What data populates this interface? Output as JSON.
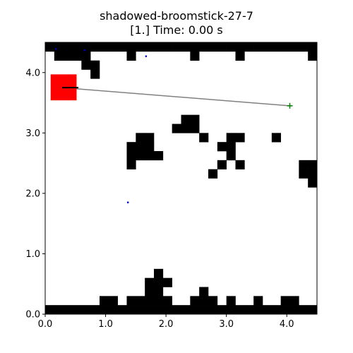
{
  "title": {
    "line1": "shadowed-broomstick-27-7",
    "line2": "[1.] Time: 0.00 s"
  },
  "chart_data": {
    "type": "grid-map",
    "xlim": [
      0,
      4.5
    ],
    "ylim": [
      0,
      4.5
    ],
    "cell_size": 0.15,
    "xticks": [
      0.0,
      1.0,
      2.0,
      3.0,
      4.0
    ],
    "xtick_labels": [
      "0.0",
      "1.0",
      "2.0",
      "3.0",
      "4.0"
    ],
    "yticks": [
      0.0,
      1.0,
      2.0,
      3.0,
      4.0
    ],
    "ytick_labels": [
      "0.0",
      "1.0",
      "2.0",
      "3.0",
      "4.0"
    ],
    "obstacle_cells": [
      [
        0,
        0
      ],
      [
        1,
        0
      ],
      [
        2,
        0
      ],
      [
        3,
        0
      ],
      [
        4,
        0
      ],
      [
        5,
        0
      ],
      [
        6,
        0
      ],
      [
        7,
        0
      ],
      [
        8,
        0
      ],
      [
        9,
        0
      ],
      [
        10,
        0
      ],
      [
        11,
        0
      ],
      [
        12,
        0
      ],
      [
        13,
        0
      ],
      [
        14,
        0
      ],
      [
        15,
        0
      ],
      [
        16,
        0
      ],
      [
        17,
        0
      ],
      [
        18,
        0
      ],
      [
        19,
        0
      ],
      [
        20,
        0
      ],
      [
        21,
        0
      ],
      [
        22,
        0
      ],
      [
        23,
        0
      ],
      [
        24,
        0
      ],
      [
        25,
        0
      ],
      [
        26,
        0
      ],
      [
        27,
        0
      ],
      [
        28,
        0
      ],
      [
        29,
        0
      ],
      [
        1,
        1
      ],
      [
        2,
        1
      ],
      [
        3,
        1
      ],
      [
        4,
        1
      ],
      [
        9,
        1
      ],
      [
        16,
        1
      ],
      [
        21,
        1
      ],
      [
        29,
        1
      ],
      [
        4,
        2
      ],
      [
        5,
        2
      ],
      [
        5,
        3
      ],
      [
        10,
        10
      ],
      [
        11,
        10
      ],
      [
        9,
        11
      ],
      [
        10,
        11
      ],
      [
        11,
        11
      ],
      [
        9,
        12
      ],
      [
        10,
        12
      ],
      [
        11,
        12
      ],
      [
        12,
        12
      ],
      [
        9,
        13
      ],
      [
        20,
        10
      ],
      [
        21,
        10
      ],
      [
        20,
        11
      ],
      [
        19,
        11
      ],
      [
        20,
        12
      ],
      [
        19,
        13
      ],
      [
        21,
        13
      ],
      [
        18,
        14
      ],
      [
        15,
        8
      ],
      [
        16,
        8
      ],
      [
        15,
        9
      ],
      [
        16,
        9
      ],
      [
        14,
        9
      ],
      [
        17,
        10
      ],
      [
        25,
        10
      ],
      [
        28,
        13
      ],
      [
        29,
        13
      ],
      [
        28,
        14
      ],
      [
        29,
        14
      ],
      [
        29,
        15
      ],
      [
        0,
        29
      ],
      [
        1,
        29
      ],
      [
        2,
        29
      ],
      [
        3,
        29
      ],
      [
        4,
        29
      ],
      [
        5,
        29
      ],
      [
        6,
        29
      ],
      [
        7,
        29
      ],
      [
        8,
        29
      ],
      [
        9,
        29
      ],
      [
        10,
        29
      ],
      [
        11,
        29
      ],
      [
        12,
        29
      ],
      [
        13,
        29
      ],
      [
        14,
        29
      ],
      [
        15,
        29
      ],
      [
        16,
        29
      ],
      [
        17,
        29
      ],
      [
        18,
        29
      ],
      [
        19,
        29
      ],
      [
        20,
        29
      ],
      [
        21,
        29
      ],
      [
        22,
        29
      ],
      [
        23,
        29
      ],
      [
        24,
        29
      ],
      [
        25,
        29
      ],
      [
        26,
        29
      ],
      [
        27,
        29
      ],
      [
        28,
        29
      ],
      [
        29,
        29
      ],
      [
        6,
        28
      ],
      [
        7,
        28
      ],
      [
        9,
        28
      ],
      [
        10,
        28
      ],
      [
        11,
        28
      ],
      [
        12,
        28
      ],
      [
        13,
        28
      ],
      [
        16,
        28
      ],
      [
        17,
        28
      ],
      [
        18,
        28
      ],
      [
        20,
        28
      ],
      [
        23,
        28
      ],
      [
        26,
        28
      ],
      [
        27,
        28
      ],
      [
        11,
        27
      ],
      [
        12,
        27
      ],
      [
        17,
        27
      ],
      [
        11,
        26
      ],
      [
        12,
        26
      ],
      [
        13,
        26
      ],
      [
        12,
        25
      ]
    ],
    "robot": {
      "x": [
        0.09,
        0.52
      ],
      "y": [
        3.54,
        3.97
      ],
      "color": "#ff0000"
    },
    "heading": {
      "x": [
        0.28,
        0.55
      ],
      "y": [
        3.75,
        3.75
      ],
      "color": "#000000"
    },
    "path_line": {
      "x": [
        0.28,
        4.05
      ],
      "y": [
        3.75,
        3.45
      ],
      "color": "#808080"
    },
    "goal": {
      "x": 4.05,
      "y": 3.45,
      "marker": "+",
      "color": "#008000"
    },
    "small_markers": [
      {
        "x": 0.18,
        "y": 4.39,
        "color": "#0000cc"
      },
      {
        "x": 0.65,
        "y": 4.37,
        "color": "#0000cc"
      },
      {
        "x": 1.67,
        "y": 4.27,
        "color": "#0000cc"
      },
      {
        "x": 1.37,
        "y": 1.85,
        "color": "#0000cc"
      }
    ],
    "grid": false
  }
}
